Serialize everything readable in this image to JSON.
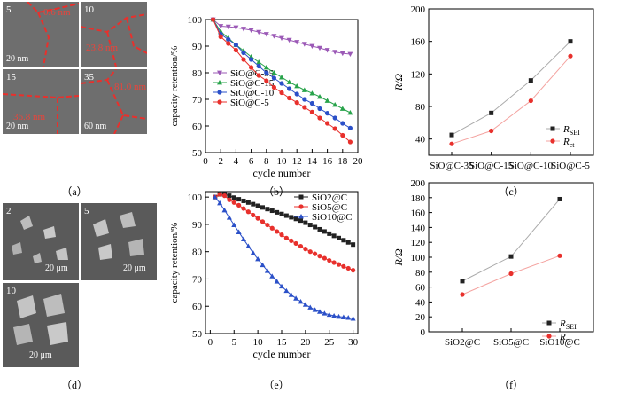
{
  "panel_labels": {
    "a": "（a）",
    "b": "（b）",
    "c": "（c）",
    "d": "（d）",
    "e": "（e）",
    "f": "（f）"
  },
  "micrographs_a": [
    {
      "label": "5",
      "measure": "0.6 nm",
      "scale": "20 nm"
    },
    {
      "label": "10",
      "measure": "23.8 nm",
      "scale": ""
    },
    {
      "label": "15",
      "measure": "36.8 nm",
      "scale": "20 nm"
    },
    {
      "label": "35",
      "measure": "81.0 nm",
      "scale": "60 nm"
    }
  ],
  "micrographs_d": [
    {
      "label": "2",
      "scale": "20 μm"
    },
    {
      "label": "5",
      "scale": "20 μm"
    },
    {
      "label": "10",
      "scale": "20 μm"
    }
  ],
  "chart_data": [
    {
      "id": "b",
      "type": "line",
      "xlabel": "cycle number",
      "ylabel": "capacity retention/%",
      "xlim": [
        0,
        20
      ],
      "ylim": [
        50,
        100
      ],
      "xticks": [
        0,
        2,
        4,
        6,
        8,
        10,
        12,
        14,
        16,
        18,
        20
      ],
      "yticks": [
        50,
        60,
        70,
        80,
        90,
        100
      ],
      "x": [
        1,
        2,
        3,
        4,
        5,
        6,
        7,
        8,
        9,
        10,
        11,
        12,
        13,
        14,
        15,
        16,
        17,
        18,
        19
      ],
      "series": [
        {
          "name": "SiO@C-35",
          "color": "#9b59b6",
          "marker": "tri_down",
          "values": [
            100,
            97.5,
            97.3,
            97,
            96.5,
            96,
            95.3,
            94.5,
            93.8,
            93,
            92.3,
            91.5,
            90.8,
            90,
            89.3,
            88.5,
            87.8,
            87.3,
            87
          ]
        },
        {
          "name": "SiO@C-15",
          "color": "#27a34a",
          "marker": "tri_up",
          "values": [
            100,
            95.5,
            93,
            90.5,
            88.3,
            86,
            84,
            82,
            80,
            78.3,
            76.5,
            75,
            73.5,
            72.3,
            71,
            69.5,
            68,
            66.5,
            65
          ]
        },
        {
          "name": "SiO@C-10",
          "color": "#2b50c8",
          "marker": "circle",
          "values": [
            100,
            94.5,
            92.5,
            90.5,
            87.5,
            85,
            82.5,
            80,
            78,
            76,
            74,
            72,
            70,
            68.5,
            66.5,
            64.8,
            63,
            61,
            59.2
          ]
        },
        {
          "name": "SiO@C-5",
          "color": "#e8302c",
          "marker": "circle",
          "values": [
            100,
            93.5,
            91,
            88.5,
            85,
            82,
            79,
            77,
            74.5,
            72.5,
            70.5,
            68.8,
            67,
            65.2,
            63,
            61,
            59,
            56.5,
            54
          ]
        }
      ]
    },
    {
      "id": "c",
      "type": "line",
      "ylabel": "R/Ω",
      "categories": [
        "SiO@C-35",
        "SiO@C-15",
        "SiO@C-10",
        "SiO@C-5"
      ],
      "ylim": [
        20,
        200
      ],
      "yticks": [
        40,
        80,
        120,
        160,
        200
      ],
      "series": [
        {
          "name": "R_SEI",
          "label_main": "R",
          "label_sub": "SEI",
          "color": "#222222",
          "marker": "square",
          "values": [
            45,
            72,
            112,
            160
          ]
        },
        {
          "name": "R_ct",
          "label_main": "R",
          "label_sub": "ct",
          "color": "#e8302c",
          "marker": "circle",
          "values": [
            34,
            50,
            87,
            142
          ]
        }
      ]
    },
    {
      "id": "e",
      "type": "line",
      "xlabel": "cycle number",
      "ylabel": "capacity retention/%",
      "xlim": [
        -1,
        31
      ],
      "ylim": [
        50,
        102
      ],
      "xticks": [
        0,
        5,
        10,
        15,
        20,
        25,
        30
      ],
      "yticks": [
        50,
        60,
        70,
        80,
        90,
        100
      ],
      "x": [
        1,
        2,
        3,
        4,
        5,
        6,
        7,
        8,
        9,
        10,
        11,
        12,
        13,
        14,
        15,
        16,
        17,
        18,
        19,
        20,
        21,
        22,
        23,
        24,
        25,
        26,
        27,
        28,
        29,
        30
      ],
      "series": [
        {
          "name": "SiO2@C",
          "color": "#222222",
          "marker": "square",
          "values": [
            100,
            101,
            101,
            100.5,
            99.8,
            99.2,
            98.6,
            98,
            97.4,
            96.8,
            96.2,
            95.6,
            95,
            94.4,
            93.8,
            93.2,
            92.6,
            92,
            91.4,
            90.6,
            89.8,
            89,
            88.2,
            87.4,
            86.6,
            85.8,
            85,
            84.2,
            83.4,
            82.6
          ]
        },
        {
          "name": "SiO5@C",
          "color": "#e8302c",
          "marker": "circle",
          "values": [
            100,
            101,
            100.5,
            99,
            98,
            97,
            95.8,
            94.6,
            93.4,
            92.2,
            91,
            89.8,
            88.6,
            87.4,
            86.2,
            85,
            84,
            83,
            82,
            81,
            80,
            79.2,
            78.4,
            77.6,
            76.8,
            76,
            75.3,
            74.6,
            73.9,
            73.2
          ]
        },
        {
          "name": "SiO10@C",
          "color": "#2b50c8",
          "marker": "tri_up",
          "values": [
            100,
            97.8,
            95.2,
            92.5,
            89.8,
            87.2,
            84.6,
            82,
            79.6,
            77.3,
            75.1,
            73,
            71,
            69.1,
            67.3,
            65.7,
            64.2,
            62.9,
            61.7,
            60.6,
            59.6,
            58.7,
            58,
            57.4,
            56.9,
            56.5,
            56.2,
            56,
            55.8,
            55.5
          ]
        }
      ]
    },
    {
      "id": "f",
      "type": "line",
      "ylabel": "R/Ω",
      "categories": [
        "SiO2@C",
        "SiO5@C",
        "SiO10@C"
      ],
      "ylim": [
        0,
        200
      ],
      "yticks": [
        0,
        20,
        40,
        60,
        80,
        100,
        120,
        140,
        160,
        180,
        200
      ],
      "series": [
        {
          "name": "R_SEI",
          "label_main": "R",
          "label_sub": "SEI",
          "color": "#222222",
          "marker": "square",
          "values": [
            68,
            101,
            178
          ]
        },
        {
          "name": "R_ct",
          "label_main": "R",
          "label_sub": "ct",
          "color": "#e8302c",
          "marker": "circle",
          "values": [
            50,
            78,
            102
          ]
        }
      ]
    }
  ]
}
